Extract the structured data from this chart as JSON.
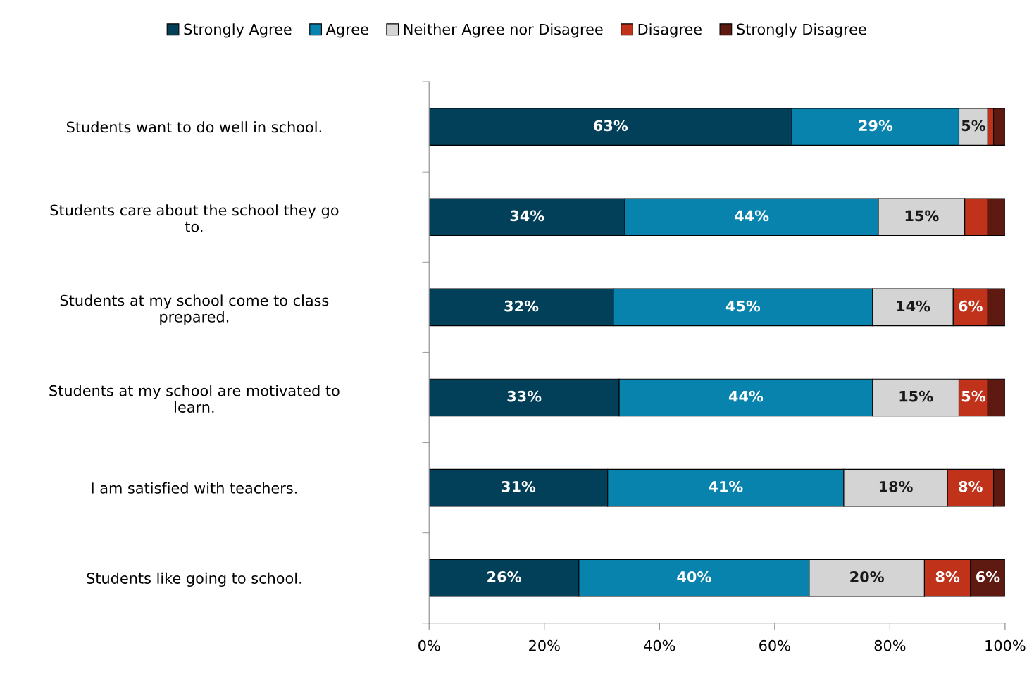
{
  "chart_data": {
    "type": "bar",
    "orientation": "horizontal",
    "stacked": true,
    "grid": false,
    "legend": "top",
    "categories": [
      "Students want to do well in school.",
      "Students care about the school they go to.",
      "Students at my school come to class prepared.",
      "Students at my school are motivated to learn.",
      "I am satisfied with teachers.",
      "Students like going to school."
    ],
    "series": [
      {
        "name": "Strongly Agree",
        "color": "#023f58",
        "values": [
          63,
          34,
          32,
          33,
          31,
          26
        ],
        "value_labels": [
          "63%",
          "34%",
          "32%",
          "33%",
          "31%",
          "26%"
        ]
      },
      {
        "name": "Agree",
        "color": "#0883ad",
        "values": [
          29,
          44,
          45,
          44,
          41,
          40
        ],
        "value_labels": [
          "29%",
          "44%",
          "45%",
          "44%",
          "41%",
          "40%"
        ]
      },
      {
        "name": "Neither Agree nor Disagree",
        "color": "#d4d4d4",
        "values": [
          5,
          15,
          14,
          15,
          18,
          20
        ],
        "value_labels": [
          "5%",
          "15%",
          "14%",
          "15%",
          "18%",
          "20%"
        ]
      },
      {
        "name": "Disagree",
        "color": "#c0321a",
        "values": [
          1,
          4,
          6,
          5,
          8,
          8
        ],
        "value_labels": [
          null,
          null,
          "6%",
          "5%",
          "8%",
          "8%"
        ]
      },
      {
        "name": "Strongly Disagree",
        "color": "#5e1a10",
        "values": [
          2,
          3,
          3,
          3,
          2,
          6
        ],
        "value_labels": [
          null,
          null,
          null,
          null,
          null,
          "6%"
        ]
      }
    ],
    "xlim": [
      0,
      100
    ],
    "xticks": [
      {
        "value": 0,
        "label": "0%"
      },
      {
        "value": 20,
        "label": "20%"
      },
      {
        "value": 40,
        "label": "40%"
      },
      {
        "value": 60,
        "label": "60%"
      },
      {
        "value": 80,
        "label": "80%"
      },
      {
        "value": 100,
        "label": "100%"
      }
    ]
  }
}
